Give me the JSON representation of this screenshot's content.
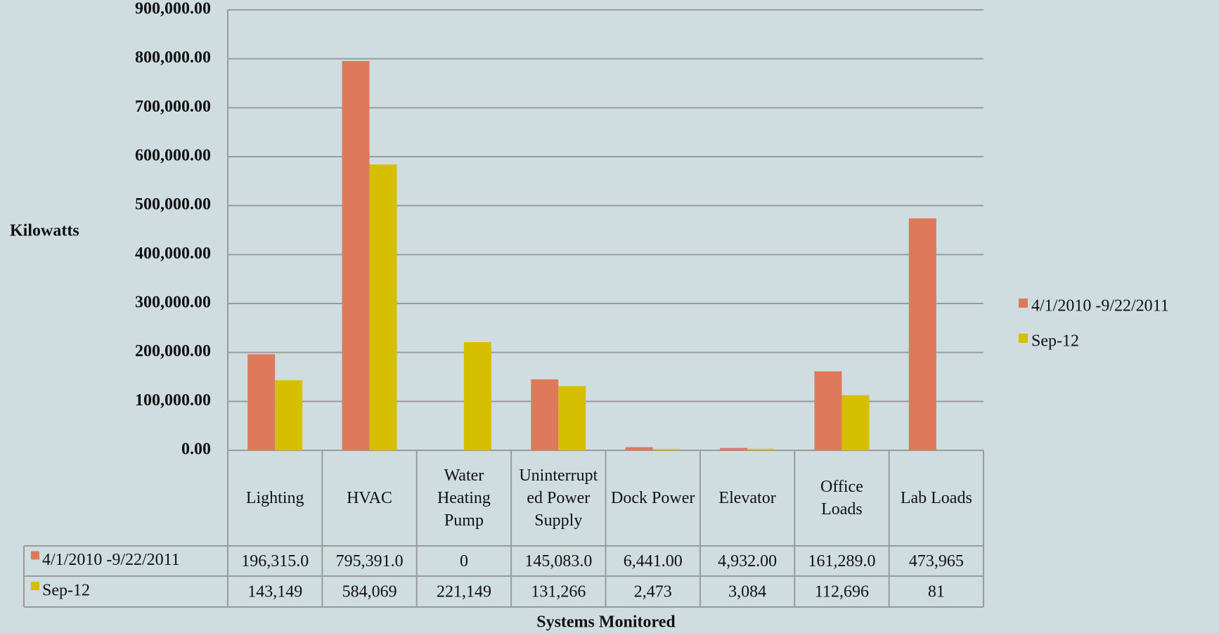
{
  "chart_data": {
    "type": "bar",
    "y_label": "Kilowatts",
    "x_label": "Systems Monitored",
    "categories": [
      "Lighting",
      "HVAC",
      "Water Heating Pump",
      "Uninterrupted Power Supply",
      "Dock Power",
      "Elevator",
      "Office Loads",
      "Lab Loads"
    ],
    "series": [
      {
        "name": "4/1/2010 -9/22/2011",
        "color": "#df795b",
        "values": [
          196315,
          795391,
          0,
          145083,
          6441,
          4932,
          161289,
          473965
        ],
        "value_labels": [
          "196,315.0",
          "795,391.0",
          "0",
          "145,083.0",
          "6,441.00",
          "4,932.00",
          "161,289.0",
          "473,965"
        ]
      },
      {
        "name": "Sep-12",
        "color": "#d5bf00",
        "values": [
          143149,
          584069,
          221149,
          131266,
          2473,
          3084,
          112696,
          81
        ],
        "value_labels": [
          "143,149",
          "584,069",
          "221,149",
          "131,266",
          "2,473",
          "3,084",
          "112,696",
          "81"
        ]
      }
    ],
    "ylim": [
      0,
      900000
    ],
    "yticks": [
      {
        "value": 0,
        "label": "0.00"
      },
      {
        "value": 100000,
        "label": "100,000.00"
      },
      {
        "value": 200000,
        "label": "200,000.00"
      },
      {
        "value": 300000,
        "label": "300,000.00"
      },
      {
        "value": 400000,
        "label": "400,000.00"
      },
      {
        "value": 500000,
        "label": "500,000.00"
      },
      {
        "value": 600000,
        "label": "600,000.00"
      },
      {
        "value": 700000,
        "label": "700,000.00"
      },
      {
        "value": 800000,
        "label": "800,000.00"
      },
      {
        "value": 900000,
        "label": "900,000.00"
      }
    ],
    "grid": true,
    "legend": "right"
  }
}
